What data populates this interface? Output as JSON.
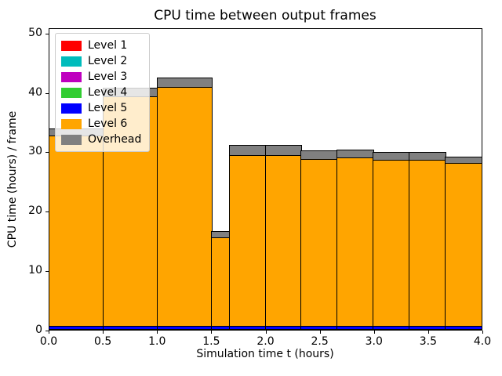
{
  "title": "CPU time between output frames",
  "chart_data": {
    "type": "bar",
    "subtype": "stacked-histogram",
    "title": "CPU time between output frames",
    "xlabel": "Simulation time t (hours)",
    "ylabel": "CPU time (hours) / frame",
    "xlim": [
      0,
      4
    ],
    "ylim": [
      0,
      50.9
    ],
    "grid": false,
    "legend_position": "upper left",
    "x_tick_values": [
      0,
      0.5,
      1.0,
      1.5,
      2.0,
      2.5,
      3.0,
      3.5,
      4.0
    ],
    "x_tick_labels": [
      "0.0",
      "0.5",
      "1.0",
      "1.5",
      "2.0",
      "2.5",
      "3.0",
      "3.5",
      "4.0"
    ],
    "y_tick_values": [
      0,
      10,
      20,
      30,
      40,
      50
    ],
    "y_tick_labels": [
      "0",
      "10",
      "20",
      "30",
      "40",
      "50"
    ],
    "bin_edges": [
      0,
      0.5,
      1.0,
      1.5,
      1.6667,
      2.0,
      2.3333,
      2.6667,
      3.0,
      3.3333,
      3.6667,
      4.0
    ],
    "bar_edge_color": "#000000",
    "totals": [
      34.0,
      40.8,
      42.5,
      16.6,
      31.1,
      31.1,
      30.2,
      30.3,
      30.0,
      30.0,
      29.1
    ],
    "series": [
      {
        "name": "Level 1",
        "color": "#ff0000",
        "values": [
          0.05,
          0.05,
          0.05,
          0.05,
          0.05,
          0.05,
          0.05,
          0.05,
          0.05,
          0.05,
          0.05
        ]
      },
      {
        "name": "Level 2",
        "color": "#00bcbc",
        "values": [
          0.05,
          0.05,
          0.05,
          0.05,
          0.05,
          0.05,
          0.05,
          0.05,
          0.05,
          0.05,
          0.05
        ]
      },
      {
        "name": "Level 3",
        "color": "#bf00bf",
        "values": [
          0.05,
          0.05,
          0.05,
          0.05,
          0.05,
          0.05,
          0.05,
          0.05,
          0.05,
          0.05,
          0.05
        ]
      },
      {
        "name": "Level 4",
        "color": "#32cd32",
        "values": [
          0.05,
          0.05,
          0.05,
          0.05,
          0.05,
          0.05,
          0.05,
          0.05,
          0.05,
          0.05,
          0.05
        ]
      },
      {
        "name": "Level 5",
        "color": "#0000ff",
        "values": [
          0.5,
          0.5,
          0.5,
          0.5,
          0.5,
          0.5,
          0.5,
          0.5,
          0.5,
          0.5,
          0.5
        ]
      },
      {
        "name": "Level 6",
        "color": "#ffa500",
        "values": [
          32.2,
          38.8,
          40.4,
          14.9,
          28.8,
          28.8,
          28.2,
          28.4,
          28.1,
          28.1,
          27.6
        ]
      },
      {
        "name": "Overhead",
        "color": "#808080",
        "values": [
          1.1,
          1.3,
          1.4,
          1.0,
          1.6,
          1.6,
          1.3,
          1.2,
          1.2,
          1.2,
          0.8
        ]
      }
    ]
  }
}
